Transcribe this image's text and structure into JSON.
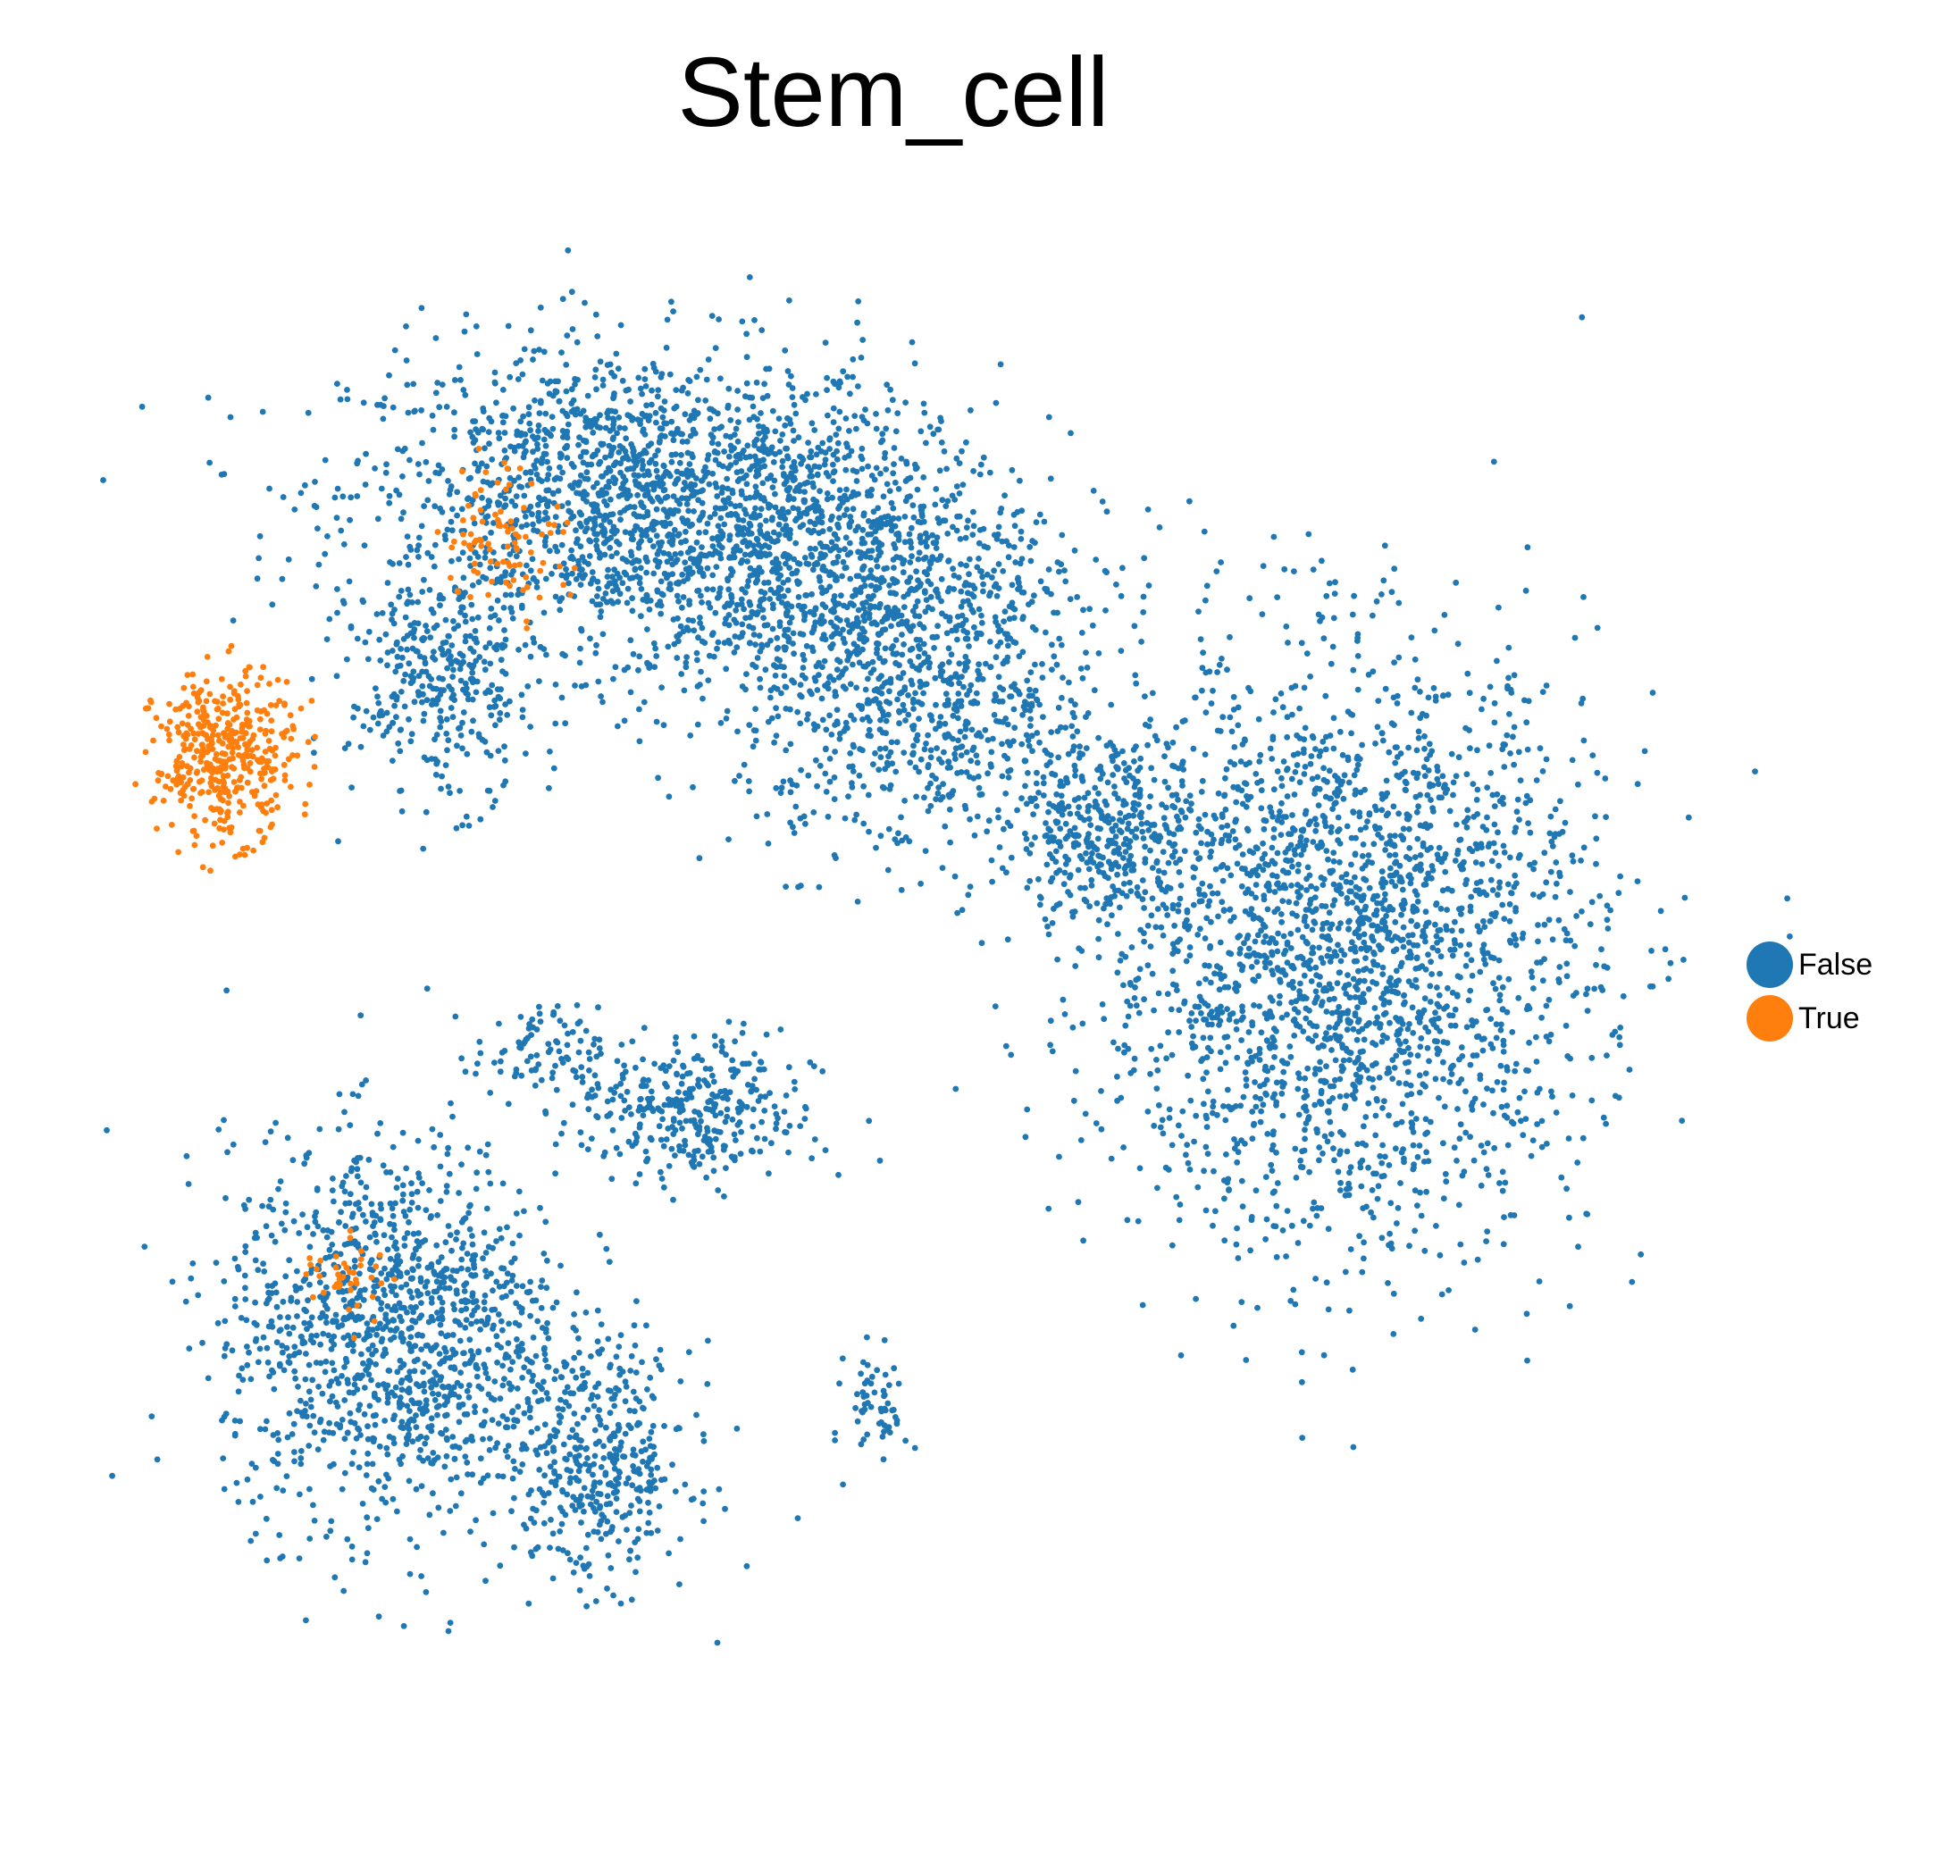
{
  "chart_data": {
    "type": "scatter",
    "title": "Stem_cell",
    "xlabel": "",
    "ylabel": "",
    "grid": false,
    "axes_visible": false,
    "legend_position": "right",
    "xlim": [
      0,
      100
    ],
    "ylim": [
      0,
      100
    ],
    "series": [
      {
        "name": "False",
        "color": "#1f77b4",
        "clusters": [
          {
            "cx": 33,
            "cy": 83,
            "rx": 18,
            "ry": 10,
            "n": 1500
          },
          {
            "cx": 45,
            "cy": 78,
            "rx": 15,
            "ry": 10,
            "n": 1100
          },
          {
            "cx": 52,
            "cy": 68,
            "rx": 12,
            "ry": 10,
            "n": 700
          },
          {
            "cx": 21,
            "cy": 70,
            "rx": 6,
            "ry": 8,
            "n": 350
          },
          {
            "cx": 64,
            "cy": 60,
            "rx": 6,
            "ry": 6,
            "n": 350
          },
          {
            "cx": 79,
            "cy": 52,
            "rx": 16,
            "ry": 20,
            "n": 2400
          },
          {
            "cx": 37,
            "cy": 41,
            "rx": 8,
            "ry": 5,
            "n": 350
          },
          {
            "cx": 27,
            "cy": 45,
            "rx": 4,
            "ry": 3,
            "n": 80
          },
          {
            "cx": 18,
            "cy": 26,
            "rx": 11,
            "ry": 13,
            "n": 1300
          },
          {
            "cx": 31,
            "cy": 17,
            "rx": 6,
            "ry": 8,
            "n": 400
          },
          {
            "cx": 49,
            "cy": 21,
            "rx": 2,
            "ry": 4,
            "n": 60
          }
        ]
      },
      {
        "name": "True",
        "color": "#ff7f0e",
        "clusters": [
          {
            "cx": 7,
            "cy": 65,
            "rx": 4.5,
            "ry": 5.5,
            "n": 420
          },
          {
            "cx": 25,
            "cy": 80,
            "rx": 4,
            "ry": 5,
            "n": 90
          },
          {
            "cx": 15,
            "cy": 30,
            "rx": 3,
            "ry": 3,
            "n": 40
          }
        ]
      }
    ]
  }
}
